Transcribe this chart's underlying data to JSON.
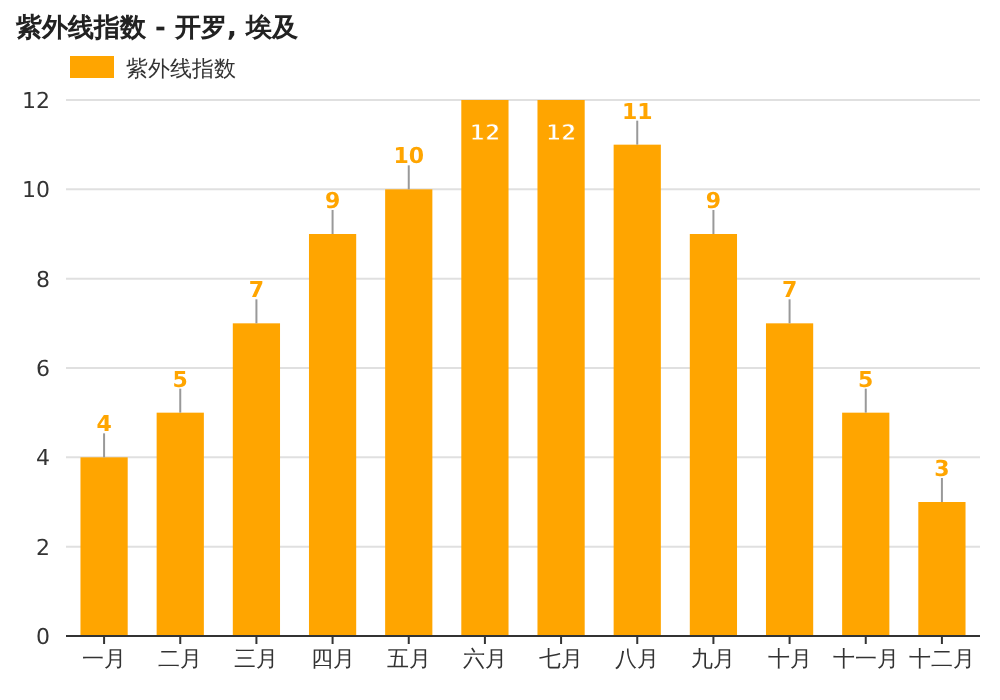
{
  "chart_data": {
    "type": "bar",
    "title": "紫外线指数 - 开罗, 埃及",
    "categories": [
      "一月",
      "二月",
      "三月",
      "四月",
      "五月",
      "六月",
      "七月",
      "八月",
      "九月",
      "十月",
      "十一月",
      "十二月"
    ],
    "series": [
      {
        "name": "紫外线指数",
        "color": "#ffa500",
        "values": [
          4,
          5,
          7,
          9,
          10,
          12,
          12,
          11,
          9,
          7,
          5,
          3
        ]
      }
    ],
    "ylim": [
      0,
      12
    ],
    "yticks": [
      0,
      2,
      4,
      6,
      8,
      10,
      12
    ],
    "grid": "y",
    "legend": "top left",
    "data_labels": true
  }
}
